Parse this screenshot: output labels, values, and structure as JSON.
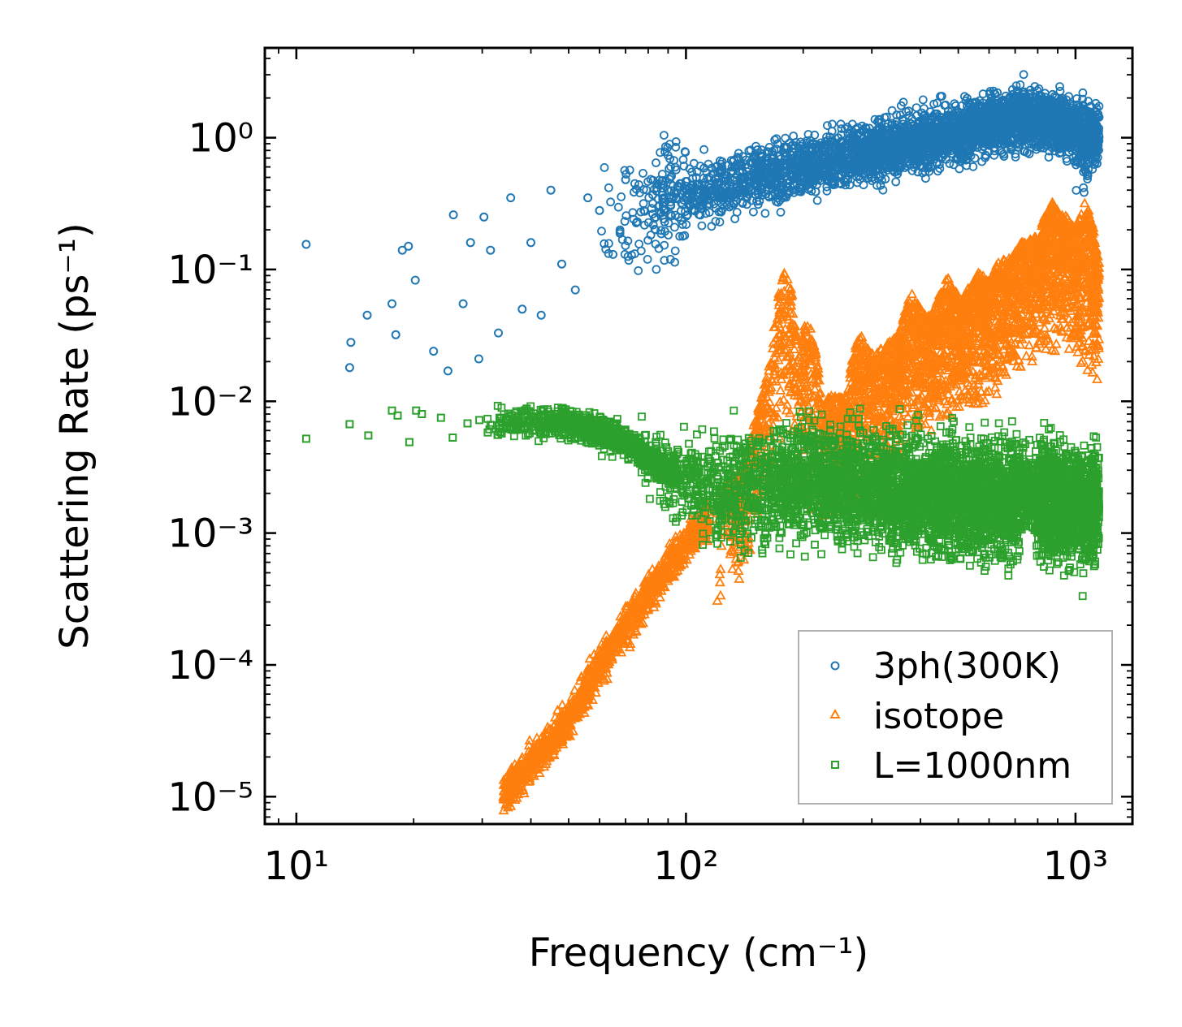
{
  "chart_data": {
    "type": "scatter",
    "xscale": "log",
    "yscale": "log",
    "xlim": [
      8.3,
      1400
    ],
    "ylim": [
      6.2e-06,
      4.8
    ],
    "xlabel": "Frequency (cm⁻¹)",
    "ylabel": "Scattering Rate (ps⁻¹)",
    "x_ticks": [
      {
        "value": 10,
        "label": "10¹"
      },
      {
        "value": 100,
        "label": "10²"
      },
      {
        "value": 1000,
        "label": "10³"
      }
    ],
    "y_ticks": [
      {
        "value": 1e-05,
        "label": "10⁻⁵"
      },
      {
        "value": 0.0001,
        "label": "10⁻⁴"
      },
      {
        "value": 0.001,
        "label": "10⁻³"
      },
      {
        "value": 0.01,
        "label": "10⁻²"
      },
      {
        "value": 0.1,
        "label": "10⁻¹"
      },
      {
        "value": 1,
        "label": "10⁰"
      }
    ],
    "legend_position": "lower-right",
    "series": [
      {
        "name": "3ph(300K)",
        "marker": "circle",
        "color": "#1f77b4",
        "trend": [
          [
            10.5,
            0.16
          ],
          [
            20,
            0.1
          ],
          [
            40,
            0.2
          ],
          [
            60,
            0.25
          ],
          [
            100,
            0.35
          ],
          [
            150,
            0.5
          ],
          [
            200,
            0.6
          ],
          [
            300,
            0.8
          ],
          [
            500,
            1.1
          ],
          [
            700,
            1.4
          ],
          [
            900,
            1.3
          ],
          [
            1150,
            1.0
          ]
        ],
        "x": [
          10.6,
          13.8,
          13.7,
          15.2,
          17.6,
          18.0,
          18.7,
          19.4,
          20.2,
          22.5,
          24.5,
          25.3,
          26.8,
          28.0,
          29.4,
          30.3,
          31.5,
          33.0,
          35.5,
          38.0,
          40.0,
          42.5,
          45.0,
          48.0,
          52.0,
          56.0,
          60.0,
          65.0,
          70.0,
          75.0
        ],
        "y": [
          0.155,
          0.028,
          0.018,
          0.045,
          0.055,
          0.032,
          0.14,
          0.15,
          0.083,
          0.024,
          0.017,
          0.26,
          0.055,
          0.16,
          0.021,
          0.25,
          0.14,
          0.033,
          0.35,
          0.05,
          0.16,
          0.045,
          0.4,
          0.11,
          0.07,
          0.35,
          0.28,
          0.13,
          0.48,
          0.23
        ]
      },
      {
        "name": "isotope",
        "marker": "triangle",
        "color": "#ff7f0e",
        "trend": [
          [
            34,
            1e-05
          ],
          [
            50,
            4e-05
          ],
          [
            70,
            0.0002
          ],
          [
            100,
            0.001
          ],
          [
            140,
            0.003
          ],
          [
            180,
            0.05
          ],
          [
            200,
            0.01
          ],
          [
            260,
            0.01
          ],
          [
            300,
            0.02
          ],
          [
            400,
            0.04
          ],
          [
            550,
            0.06
          ],
          [
            750,
            0.15
          ],
          [
            900,
            0.2
          ],
          [
            1150,
            0.1
          ]
        ],
        "x": [
          34.0,
          36.0,
          38.0,
          41.0,
          44.0,
          47.0,
          50.0,
          54.0,
          58.0,
          63.0,
          68.0,
          74.0,
          80.0,
          87.0,
          95.0
        ],
        "y": [
          1e-05,
          1.3e-05,
          1.6e-05,
          2e-05,
          2.6e-05,
          3.5e-05,
          4.5e-05,
          6e-05,
          8e-05,
          0.00011,
          0.00015,
          0.00021,
          0.0003,
          0.00042,
          0.0006
        ]
      },
      {
        "name": "L=1000nm",
        "marker": "square",
        "color": "#2ca02c",
        "trend": [
          [
            10.5,
            0.0052
          ],
          [
            14,
            0.0065
          ],
          [
            20,
            0.007
          ],
          [
            30,
            0.0068
          ],
          [
            50,
            0.007
          ],
          [
            70,
            0.005
          ],
          [
            90,
            0.003
          ],
          [
            120,
            0.002
          ],
          [
            200,
            0.0025
          ],
          [
            400,
            0.002
          ],
          [
            700,
            0.0018
          ],
          [
            1150,
            0.0016
          ]
        ],
        "x": [
          10.6,
          13.7,
          15.3,
          17.6,
          18.2,
          19.5,
          20.3,
          21.0,
          23.5,
          25.2,
          27.5,
          29.5,
          31.0,
          33.5,
          36.0,
          39.0,
          42.0,
          45.0,
          48.0,
          52.0
        ],
        "y": [
          0.0052,
          0.0067,
          0.0055,
          0.0085,
          0.0078,
          0.0049,
          0.0085,
          0.008,
          0.0075,
          0.0053,
          0.0068,
          0.0072,
          0.0058,
          0.0075,
          0.0062,
          0.0088,
          0.006,
          0.0072,
          0.0058,
          0.0065
        ]
      }
    ]
  }
}
